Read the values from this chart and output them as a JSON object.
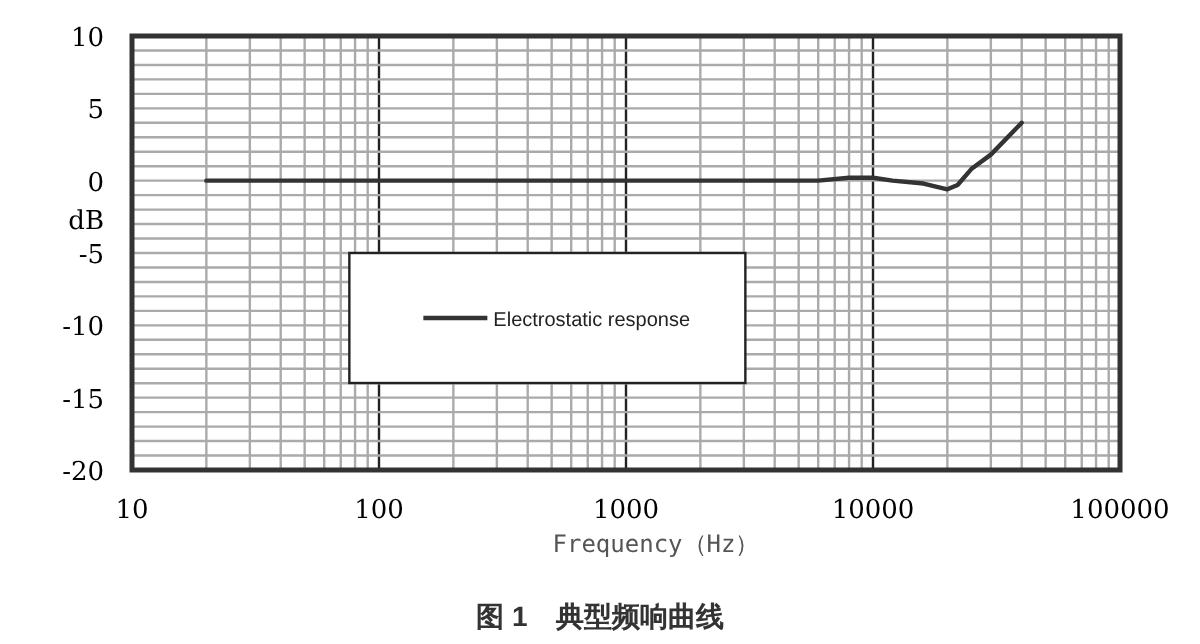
{
  "chart_data": {
    "type": "line",
    "title": "图 1　典型频响曲线",
    "xlabel": "Frequency（Hz）",
    "ylabel": "dB",
    "log": "x",
    "xlim": [
      10,
      100000
    ],
    "xticks": [
      10,
      {
        "value": 20,
        "label": null
      },
      {
        "value": 30,
        "label": null
      },
      {
        "value": 40,
        "label": null
      },
      {
        "value": 50,
        "label": null
      },
      {
        "value": 60,
        "label": null
      },
      {
        "value": 70,
        "label": null
      },
      {
        "value": 80,
        "label": null
      },
      {
        "value": 90,
        "label": null
      },
      100,
      {
        "value": 200,
        "label": null
      },
      {
        "value": 300,
        "label": null
      },
      {
        "value": 400,
        "label": null
      },
      {
        "value": 500,
        "label": null
      },
      {
        "value": 600,
        "label": null
      },
      {
        "value": 700,
        "label": null
      },
      {
        "value": 800,
        "label": null
      },
      {
        "value": 900,
        "label": null
      },
      1000,
      {
        "value": 2000,
        "label": null
      },
      {
        "value": 3000,
        "label": null
      },
      {
        "value": 4000,
        "label": null
      },
      {
        "value": 5000,
        "label": null
      },
      {
        "value": 6000,
        "label": null
      },
      {
        "value": 7000,
        "label": null
      },
      {
        "value": 8000,
        "label": null
      },
      {
        "value": 9000,
        "label": null
      },
      10000,
      {
        "value": 20000,
        "label": null
      },
      {
        "value": 30000,
        "label": null
      },
      {
        "value": 40000,
        "label": null
      },
      {
        "value": 50000,
        "label": null
      },
      {
        "value": 60000,
        "label": null
      },
      {
        "value": 70000,
        "label": null
      },
      {
        "value": 80000,
        "label": null
      },
      {
        "value": 90000,
        "label": null
      },
      100000
    ],
    "ylim": [
      -20,
      10
    ],
    "yticks": [
      -20,
      {
        "value": -19,
        "label": null
      },
      {
        "value": -18,
        "label": null
      },
      {
        "value": -17,
        "label": null
      },
      {
        "value": -16,
        "label": null
      },
      -15,
      {
        "value": -14,
        "label": null
      },
      {
        "value": -13,
        "label": null
      },
      {
        "value": -12,
        "label": null
      },
      {
        "value": -11,
        "label": null
      },
      -10,
      {
        "value": -9,
        "label": null
      },
      {
        "value": -8,
        "label": null
      },
      {
        "value": -7,
        "label": null
      },
      {
        "value": -6,
        "label": null
      },
      -5,
      {
        "value": -4,
        "label": null
      },
      {
        "value": -3,
        "label": null
      },
      {
        "value": -2,
        "label": null
      },
      {
        "value": -1,
        "label": null
      },
      0,
      {
        "value": 1,
        "label": null
      },
      {
        "value": 2,
        "label": null
      },
      {
        "value": 3,
        "label": null
      },
      {
        "value": 4,
        "label": null
      },
      5,
      {
        "value": 6,
        "label": null
      },
      {
        "value": 7,
        "label": null
      },
      {
        "value": 8,
        "label": null
      },
      {
        "value": 9,
        "label": null
      },
      10
    ],
    "grid": true,
    "legend": "center",
    "marker": "none",
    "line_style": "solid",
    "series": [
      {
        "name": "Electrostatic response",
        "color": "#333333",
        "x": [
          20,
          100,
          1000,
          3000,
          6000,
          8000,
          10000,
          12000,
          16000,
          20000,
          22000,
          25000,
          30000,
          40000
        ],
        "values": [
          0,
          0,
          0,
          0,
          0,
          0.2,
          0.2,
          0,
          -0.2,
          -0.6,
          -0.3,
          0.8,
          1.8,
          4
        ]
      }
    ]
  }
}
